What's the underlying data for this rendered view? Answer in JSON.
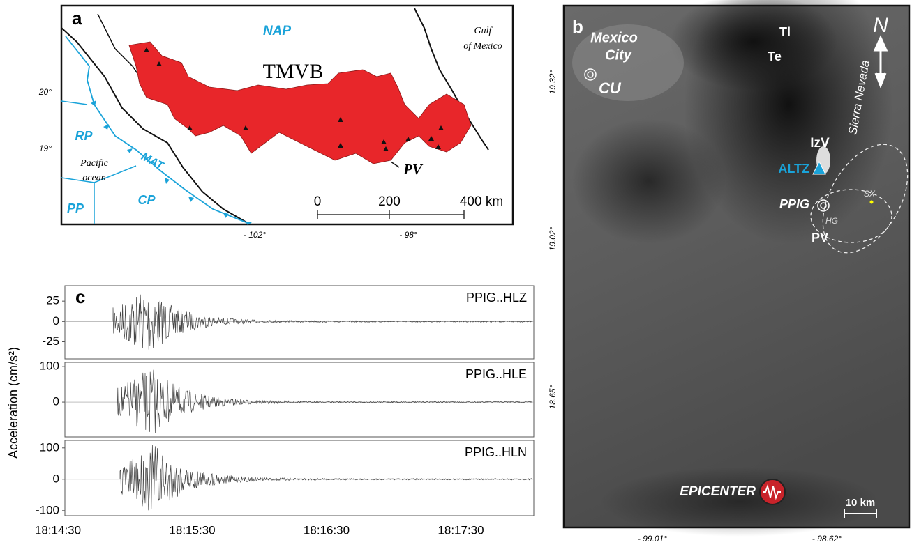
{
  "panel_a": {
    "label": "a",
    "plate_north": "NAP",
    "gulf": [
      "Gulf",
      "of Mexico"
    ],
    "belt": "TMVB",
    "lat_labels": [
      "20°",
      "19°"
    ],
    "plate_west": "RP",
    "ocean": [
      "Pacific",
      "ocean"
    ],
    "trench": "MAT",
    "plate_pp": "PP",
    "plate_cp": "CP",
    "volcano": "PV",
    "scale": [
      "0",
      "200",
      "400 km"
    ],
    "lon_labels": [
      "- 102°",
      "- 98°"
    ]
  },
  "panel_b": {
    "label": "b",
    "city": [
      "Mexico",
      "City"
    ],
    "station_cu": "CU",
    "peak_tl": "Tl",
    "peak_te": "Te",
    "range": "Sierra Nevada",
    "peak_izv": "IzV",
    "station_altz": "ALTZ",
    "station_ppig": "PPIG",
    "site_hg": "HG",
    "site_sx": "SX",
    "volcano": "PV",
    "epicenter": "EPICENTER",
    "scale": "10 km",
    "north": "N",
    "lat_labels": [
      "19.32°",
      "19.02°",
      "18.65°"
    ],
    "lon_labels": [
      "- 99.01°",
      "- 98.62°"
    ]
  },
  "panel_c": {
    "label": "c",
    "y_label": "Acceleration (cm/s²)",
    "x_labels": [
      "18:14:30",
      "18:15:30",
      "18:16:30",
      "18:17:30"
    ],
    "traces": [
      {
        "name": "PPIG..HLZ",
        "ylim": [
          -46,
          44
        ],
        "yticks": [
          25,
          0,
          -25
        ]
      },
      {
        "name": "PPIG..HLE",
        "ylim": [
          -98,
          112
        ],
        "yticks": [
          100,
          0
        ]
      },
      {
        "name": "PPIG..HLN",
        "ylim": [
          -116,
          124
        ],
        "yticks": [
          100,
          0,
          -100
        ]
      }
    ]
  }
}
